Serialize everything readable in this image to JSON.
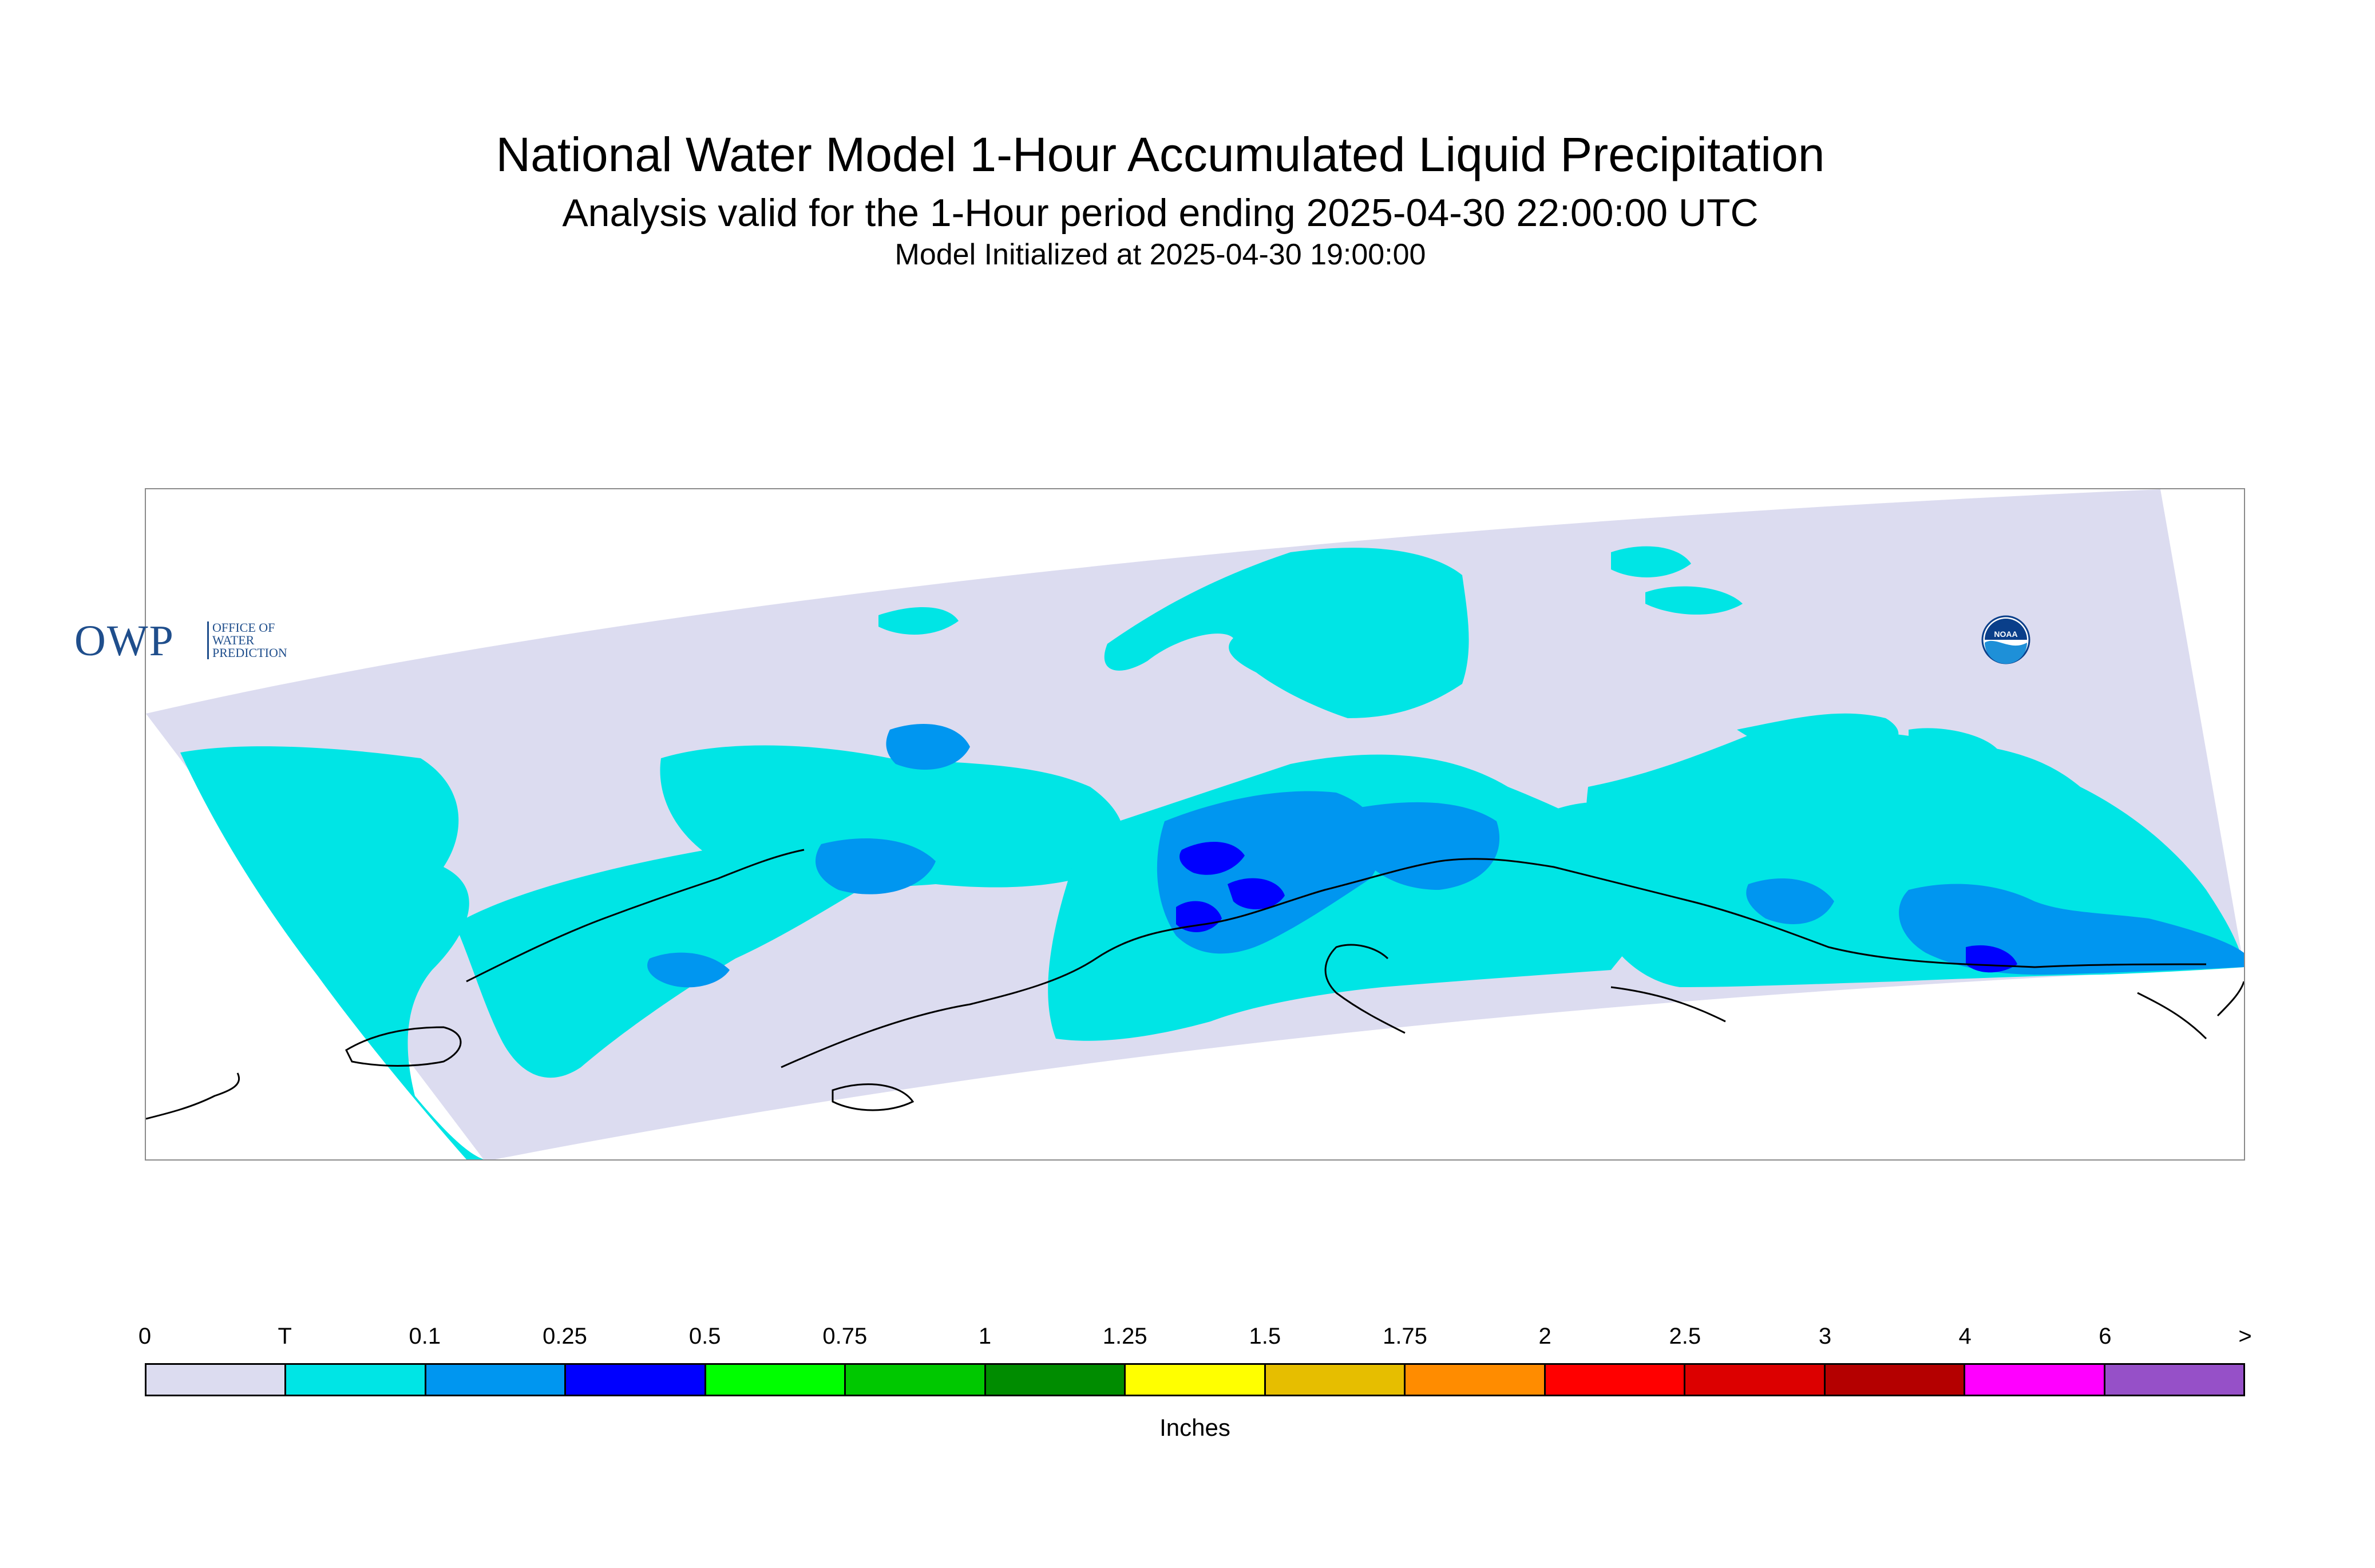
{
  "title": "National Water Model 1-Hour Accumulated Liquid Precipitation",
  "subtitle": "Analysis valid for the 1-Hour period ending 2025-04-30 22:00:00 UTC",
  "init_line": "Model Initialized at 2025-04-30 19:00:00",
  "logo": {
    "owp_text": "OWP",
    "owp_sub": "OFFICE OF WATER PREDICTION",
    "noaa_text": "NOAA"
  },
  "legend": {
    "ticks": [
      "0",
      "T",
      "0.1",
      "0.25",
      "0.5",
      "0.75",
      "1",
      "1.25",
      "1.5",
      "1.75",
      "2",
      "2.5",
      "3",
      "4",
      "6",
      ">"
    ],
    "colors": [
      "#dcdcf0",
      "#00e5e5",
      "#0096f0",
      "#0000ff",
      "#00ff00",
      "#00c800",
      "#008c00",
      "#ffff00",
      "#e6be00",
      "#ff8c00",
      "#ff0000",
      "#dc0000",
      "#b40000",
      "#ff00ff",
      "#9650c8"
    ],
    "units": "Inches"
  },
  "map_colors": {
    "no_precip": "#dcdcf0",
    "trace": "#00e5e5",
    "light": "#0096f0",
    "moderate": "#0000ff",
    "coast": "#000000"
  }
}
